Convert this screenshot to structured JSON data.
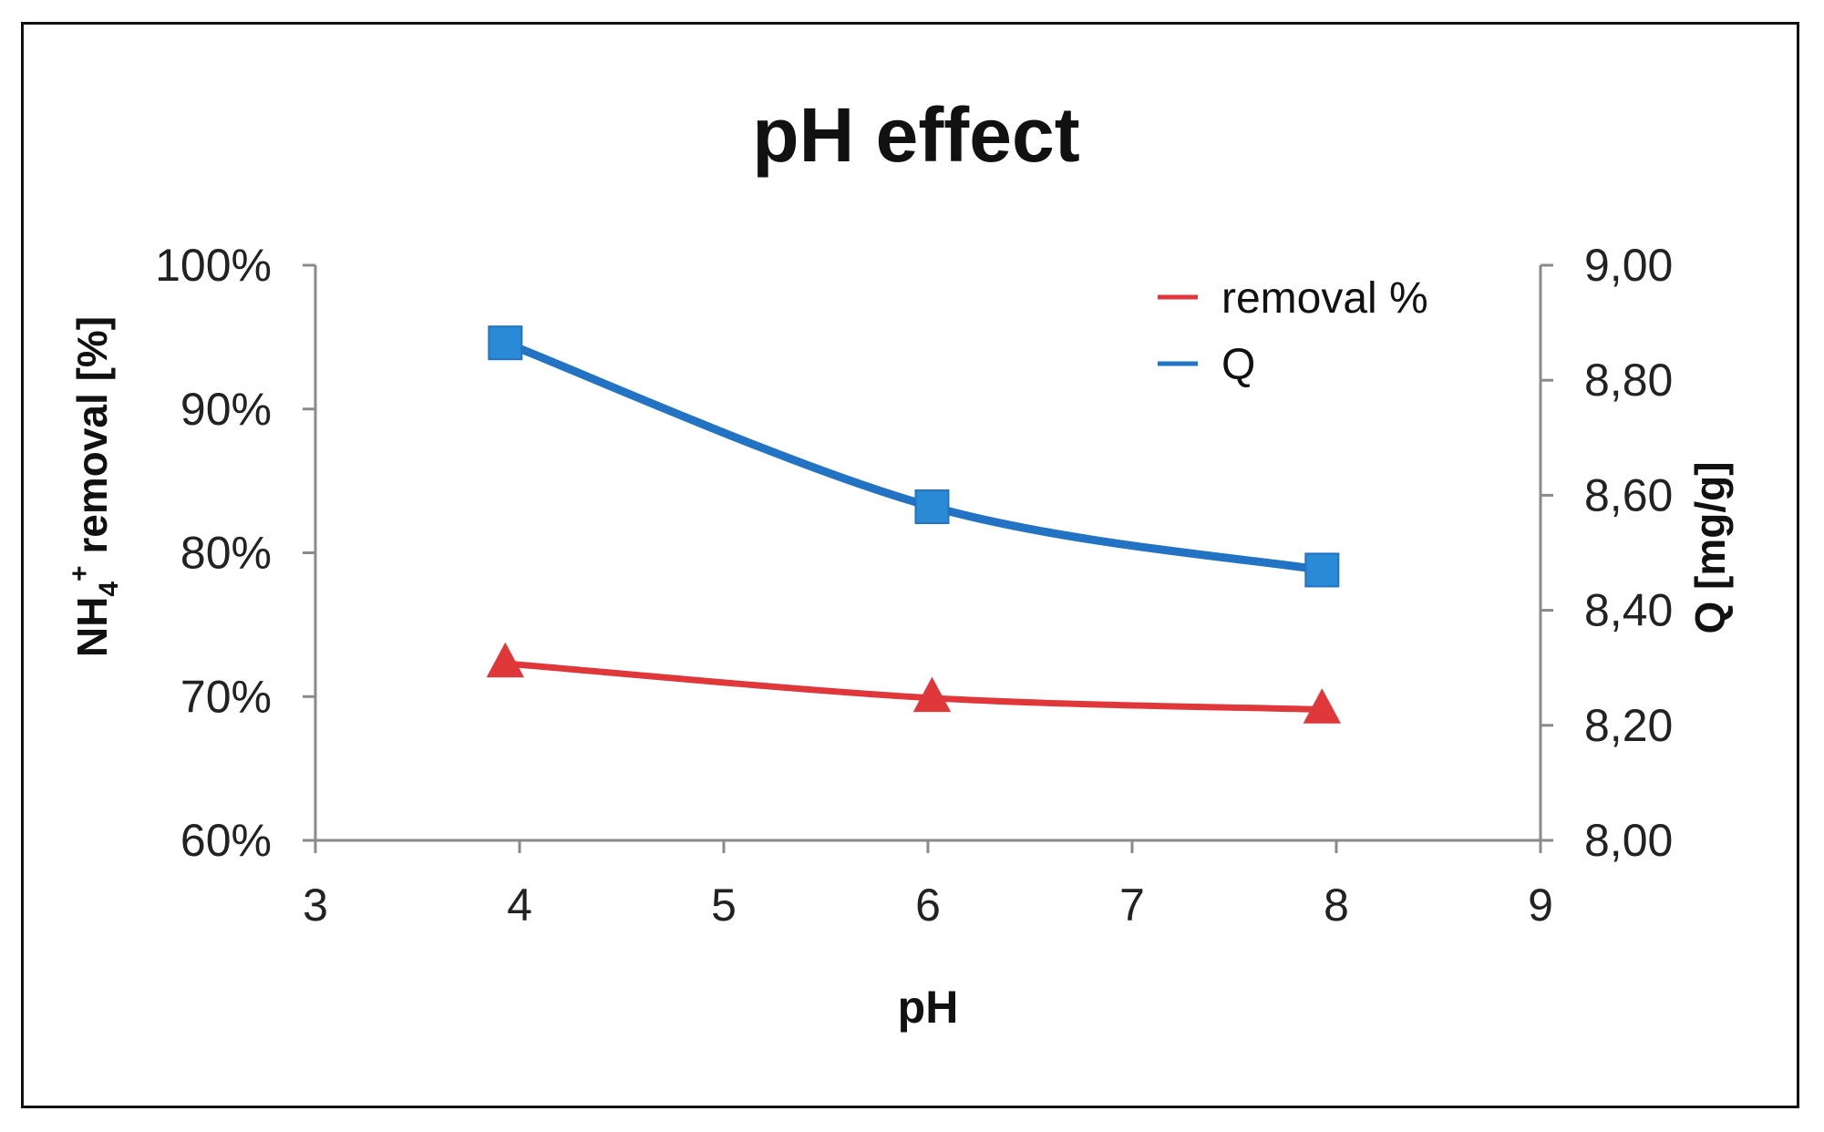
{
  "chart_data": {
    "type": "line",
    "title": "pH effect",
    "xlabel": "pH",
    "ylabel_left": {
      "prefix": "NH",
      "sub": "4",
      "sup": "+",
      "suffix": " removal  [%]"
    },
    "ylabel_right": "Q [mg/g]",
    "xlim": [
      3,
      9
    ],
    "x_ticks": [
      "3",
      "4",
      "5",
      "6",
      "7",
      "8",
      "9"
    ],
    "x_tick_values": [
      3,
      4,
      5,
      6,
      7,
      8,
      9
    ],
    "ylim_left": [
      60,
      100
    ],
    "y_left_ticks": [
      "60%",
      "70%",
      "80%",
      "90%",
      "100%"
    ],
    "y_left_tick_values": [
      60,
      70,
      80,
      90,
      100
    ],
    "ylim_right": [
      8.0,
      9.0
    ],
    "y_right_ticks": [
      "8,00",
      "8,20",
      "8,40",
      "8,60",
      "8,80",
      "9,00"
    ],
    "y_right_tick_values": [
      8.0,
      8.2,
      8.4,
      8.6,
      8.8,
      9.0
    ],
    "grid": false,
    "legend_position": "top-right",
    "series": [
      {
        "name": "removal %",
        "axis": "left",
        "color": "#e0383a",
        "marker": "triangle",
        "x": [
          3.93,
          6.02,
          7.93
        ],
        "y": [
          72.3,
          69.9,
          69.1
        ]
      },
      {
        "name": "Q",
        "axis": "right",
        "color": "#2273c4",
        "marker_color": "#2a8ad6",
        "marker": "square",
        "x": [
          3.93,
          6.02,
          7.93
        ],
        "y": [
          8.865,
          8.58,
          8.47
        ]
      }
    ]
  }
}
